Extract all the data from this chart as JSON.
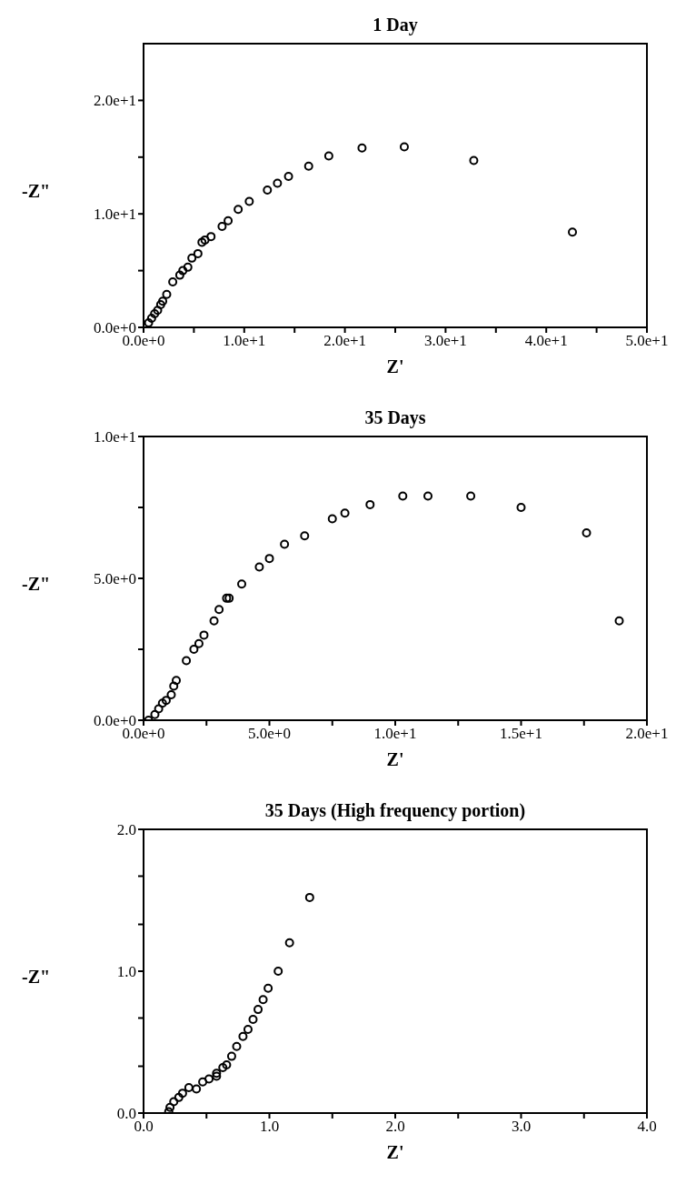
{
  "chart_data": [
    {
      "type": "scatter",
      "title": "1 Day",
      "xlabel": "Z'",
      "ylabel": "-Z\"",
      "marker": "circle",
      "xlim": [
        0,
        50
      ],
      "ylim": [
        0,
        25
      ],
      "xticks": [
        {
          "value": 0,
          "label": "0.0e+0"
        },
        {
          "value": 5,
          "label": null
        },
        {
          "value": 10,
          "label": "1.0e+1"
        },
        {
          "value": 15,
          "label": null
        },
        {
          "value": 20,
          "label": "2.0e+1"
        },
        {
          "value": 25,
          "label": null
        },
        {
          "value": 30,
          "label": "3.0e+1"
        },
        {
          "value": 35,
          "label": null
        },
        {
          "value": 40,
          "label": "4.0e+1"
        },
        {
          "value": 45,
          "label": null
        },
        {
          "value": 50,
          "label": "5.0e+1"
        }
      ],
      "yticks": [
        {
          "value": 0,
          "label": "0.0e+0"
        },
        {
          "value": 5,
          "label": null
        },
        {
          "value": 10,
          "label": "1.0e+1"
        },
        {
          "value": 15,
          "label": null
        },
        {
          "value": 20,
          "label": "2.0e+1"
        }
      ],
      "series": [
        {
          "color": "#000000",
          "x": [
            42.6,
            32.8,
            25.9,
            21.7,
            18.4,
            16.4,
            14.4,
            13.3,
            12.3,
            10.5,
            9.4,
            8.4,
            7.8,
            6.7,
            6.1,
            5.8,
            5.4,
            4.8,
            4.4,
            3.9,
            3.6,
            2.9,
            2.3,
            1.9,
            1.7,
            1.4,
            1.1,
            0.8,
            0.5
          ],
          "values": [
            8.4,
            14.7,
            15.9,
            15.8,
            15.1,
            14.2,
            13.3,
            12.7,
            12.1,
            11.1,
            10.4,
            9.4,
            8.9,
            8.0,
            7.7,
            7.5,
            6.5,
            6.1,
            5.3,
            5.0,
            4.6,
            4.0,
            2.9,
            2.3,
            2.0,
            1.5,
            1.2,
            0.8,
            0.4
          ]
        }
      ]
    },
    {
      "type": "scatter",
      "title": "35 Days",
      "xlabel": "Z'",
      "ylabel": "-Z\"",
      "marker": "circle",
      "xlim": [
        0,
        20
      ],
      "ylim": [
        0,
        10
      ],
      "xticks": [
        {
          "value": 0,
          "label": "0.0e+0"
        },
        {
          "value": 2.5,
          "label": null
        },
        {
          "value": 5,
          "label": "5.0e+0"
        },
        {
          "value": 7.5,
          "label": null
        },
        {
          "value": 10,
          "label": "1.0e+1"
        },
        {
          "value": 12.5,
          "label": null
        },
        {
          "value": 15,
          "label": "1.5e+1"
        },
        {
          "value": 17.5,
          "label": null
        },
        {
          "value": 20,
          "label": "2.0e+1"
        }
      ],
      "yticks": [
        {
          "value": 0,
          "label": "0.0e+0"
        },
        {
          "value": 2.5,
          "label": null
        },
        {
          "value": 5,
          "label": "5.0e+0"
        },
        {
          "value": 7.5,
          "label": null
        },
        {
          "value": 10,
          "label": "1.0e+1"
        }
      ],
      "series": [
        {
          "color": "#000000",
          "x": [
            18.9,
            17.6,
            15.0,
            13.0,
            11.3,
            10.3,
            9.0,
            8.0,
            7.5,
            6.4,
            5.6,
            5.0,
            4.6,
            3.9,
            3.4,
            3.3,
            3.0,
            2.8,
            2.4,
            2.2,
            2.0,
            1.7,
            1.3,
            1.2,
            1.1,
            0.9,
            0.75,
            0.6,
            0.45,
            0.2
          ],
          "values": [
            3.5,
            6.6,
            7.5,
            7.9,
            7.9,
            7.9,
            7.6,
            7.3,
            7.1,
            6.5,
            6.2,
            5.7,
            5.4,
            4.8,
            4.3,
            4.3,
            3.9,
            3.5,
            3.0,
            2.7,
            2.5,
            2.1,
            1.4,
            1.2,
            0.9,
            0.7,
            0.6,
            0.4,
            0.2,
            0.0
          ]
        }
      ]
    },
    {
      "type": "scatter",
      "title": "35 Days (High frequency portion)",
      "xlabel": "Z'",
      "ylabel": "-Z\"",
      "marker": "circle",
      "xlim": [
        0,
        4
      ],
      "ylim": [
        0,
        2
      ],
      "xticks": [
        {
          "value": 0,
          "label": "0.0"
        },
        {
          "value": 0.5,
          "label": null
        },
        {
          "value": 1,
          "label": "1.0"
        },
        {
          "value": 1.5,
          "label": null
        },
        {
          "value": 2,
          "label": "2.0"
        },
        {
          "value": 2.5,
          "label": null
        },
        {
          "value": 3,
          "label": "3.0"
        },
        {
          "value": 3.5,
          "label": null
        },
        {
          "value": 4,
          "label": "4.0"
        }
      ],
      "yticks": [
        {
          "value": 0,
          "label": "0.0"
        },
        {
          "value": 0.33,
          "label": null
        },
        {
          "value": 0.67,
          "label": null
        },
        {
          "value": 1,
          "label": "1.0"
        },
        {
          "value": 1.33,
          "label": null
        },
        {
          "value": 1.67,
          "label": null
        },
        {
          "value": 2,
          "label": "2.0"
        }
      ],
      "series": [
        {
          "color": "#000000",
          "x": [
            1.32,
            1.16,
            1.07,
            0.99,
            0.95,
            0.91,
            0.87,
            0.83,
            0.79,
            0.74,
            0.7,
            0.66,
            0.63,
            0.58,
            0.58,
            0.52,
            0.47,
            0.42,
            0.36,
            0.31,
            0.28,
            0.24,
            0.21,
            0.2
          ],
          "values": [
            1.52,
            1.2,
            1.0,
            0.88,
            0.8,
            0.73,
            0.66,
            0.59,
            0.54,
            0.47,
            0.4,
            0.34,
            0.32,
            0.28,
            0.26,
            0.24,
            0.22,
            0.17,
            0.18,
            0.14,
            0.11,
            0.08,
            0.04,
            0.01
          ]
        }
      ]
    }
  ]
}
